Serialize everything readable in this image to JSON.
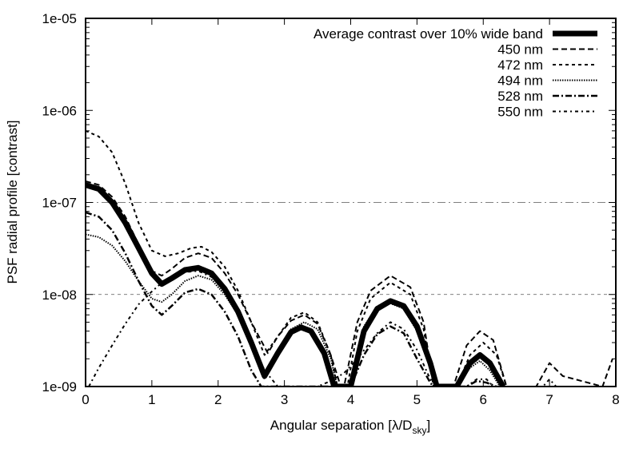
{
  "chart_data": {
    "type": "line",
    "title": "",
    "xlabel": "Angular separation [λ/D",
    "xlabel_sub": "sky",
    "xlabel_end": "]",
    "ylabel": "PSF radial profile [contrast]",
    "xlim": [
      0,
      8
    ],
    "ylim": [
      1e-09,
      1e-05
    ],
    "yscale": "log",
    "x_ticks": [
      "0",
      "1",
      "2",
      "3",
      "4",
      "5",
      "6",
      "7",
      "8"
    ],
    "y_ticks": [
      "1e-09",
      "1e-08",
      "1e-07",
      "1e-06",
      "1e-05"
    ],
    "hlines": [
      {
        "value": 1e-07,
        "style": "dash-dot"
      },
      {
        "value": 1e-08,
        "style": "dashed"
      }
    ],
    "legend_position": "top-right",
    "series": [
      {
        "name": "Average contrast over 10% wide band",
        "style": "thick",
        "x": [
          0,
          0.2,
          0.4,
          0.6,
          0.8,
          1.0,
          1.15,
          1.3,
          1.5,
          1.7,
          1.9,
          2.1,
          2.3,
          2.5,
          2.7,
          2.9,
          3.1,
          3.25,
          3.4,
          3.6,
          3.75,
          4.0,
          4.2,
          4.4,
          4.6,
          4.8,
          5.0,
          5.2,
          5.3,
          5.6,
          5.8,
          5.95,
          6.1,
          6.3
        ],
        "y": [
          1.55e-07,
          1.4e-07,
          1e-07,
          6e-08,
          3.2e-08,
          1.7e-08,
          1.3e-08,
          1.5e-08,
          1.85e-08,
          1.95e-08,
          1.7e-08,
          1.15e-08,
          6.5e-09,
          3e-09,
          1.3e-09,
          2.3e-09,
          3.9e-09,
          4.4e-09,
          4e-09,
          2.3e-09,
          1e-09,
          1e-09,
          4e-09,
          7e-09,
          8.5e-09,
          7.5e-09,
          4.5e-09,
          1.8e-09,
          1e-09,
          1e-09,
          1.8e-09,
          2.2e-09,
          1.8e-09,
          1e-09
        ]
      },
      {
        "name": "450 nm",
        "style": "dashed",
        "x": [
          0,
          0.2,
          0.4,
          0.6,
          0.8,
          1.0,
          1.15,
          1.3,
          1.5,
          1.7,
          1.9,
          2.1,
          2.3,
          2.5,
          2.75,
          2.9,
          3.1,
          3.3,
          3.5,
          3.7,
          3.85,
          3.9,
          4.1,
          4.3,
          4.6,
          4.9,
          5.1,
          5.25,
          5.55,
          5.75,
          5.95,
          6.15,
          6.35,
          6.8,
          7.0,
          7.2,
          7.8,
          7.95
        ],
        "y": [
          1.7e-07,
          1.55e-07,
          1.15e-07,
          7e-08,
          3.5e-08,
          1.8e-08,
          1.6e-08,
          1.9e-08,
          2.5e-08,
          2.8e-08,
          2.5e-08,
          1.7e-08,
          1e-08,
          5e-09,
          2.3e-09,
          3.5e-09,
          5.2e-09,
          6e-09,
          4.8e-09,
          2.2e-09,
          1e-09,
          1e-09,
          5e-09,
          1.1e-08,
          1.6e-08,
          1.2e-08,
          5e-09,
          1e-09,
          1e-09,
          2.8e-09,
          4e-09,
          3.2e-09,
          1e-09,
          1e-09,
          1.8e-09,
          1.3e-09,
          1e-09,
          2e-09
        ]
      },
      {
        "name": "472 nm",
        "style": "short-dashed",
        "x": [
          0,
          0.2,
          0.4,
          0.6,
          0.8,
          1.0,
          1.2,
          1.4,
          1.6,
          1.75,
          1.9,
          2.1,
          2.3,
          2.5,
          2.7,
          2.9,
          3.1,
          3.3,
          3.5,
          3.7,
          3.8,
          3.95,
          4.1,
          4.3,
          4.6,
          4.9,
          5.1,
          5.25,
          5.6,
          5.8,
          6.0,
          6.2,
          6.35
        ],
        "y": [
          6e-07,
          5.2e-07,
          3.5e-07,
          1.6e-07,
          6e-08,
          3e-08,
          2.6e-08,
          2.8e-08,
          3.2e-08,
          3.3e-08,
          2.9e-08,
          2e-08,
          1.1e-08,
          5e-09,
          2.2e-09,
          3.5e-09,
          5.6e-09,
          6.4e-09,
          5e-09,
          2.2e-09,
          1e-09,
          1e-09,
          4e-09,
          9e-09,
          1.35e-08,
          1e-08,
          4.2e-09,
          1e-09,
          1e-09,
          2.2e-09,
          3e-09,
          2.2e-09,
          1e-09
        ]
      },
      {
        "name": "494 nm",
        "style": "dotted",
        "x": [
          0,
          0.2,
          0.4,
          0.6,
          0.8,
          1.0,
          1.15,
          1.3,
          1.5,
          1.7,
          1.9,
          2.1,
          2.3,
          2.5,
          2.7,
          2.9,
          3.1,
          3.3,
          3.5,
          3.7,
          3.8,
          4.0,
          4.2,
          4.4,
          4.6,
          4.8,
          5.0,
          5.2,
          5.3,
          5.6,
          5.8,
          5.95,
          6.1,
          6.25
        ],
        "y": [
          4.5e-08,
          4.2e-08,
          3.4e-08,
          2.3e-08,
          1.4e-08,
          9e-09,
          8.3e-09,
          1e-08,
          1.4e-08,
          1.6e-08,
          1.45e-08,
          1e-08,
          6e-09,
          3e-09,
          1.2e-09,
          2.5e-09,
          4.2e-09,
          5e-09,
          4.2e-09,
          2e-09,
          1e-09,
          1e-09,
          4.5e-09,
          7.5e-09,
          8e-09,
          7e-09,
          4e-09,
          1.6e-09,
          1e-09,
          1e-09,
          1.6e-09,
          1.9e-09,
          1.5e-09,
          1e-09
        ]
      },
      {
        "name": "528 nm",
        "style": "dash-dot",
        "x": [
          0,
          0.2,
          0.4,
          0.6,
          0.8,
          1.0,
          1.15,
          1.3,
          1.5,
          1.7,
          1.9,
          2.1,
          2.3,
          2.5,
          2.65,
          2.8,
          3.0,
          3.2,
          3.35,
          3.5,
          3.6,
          4.0,
          4.2,
          4.4,
          4.6,
          4.8,
          5.0,
          5.2,
          5.25,
          5.75,
          5.9,
          6.05,
          6.2
        ],
        "y": [
          7.8e-08,
          7e-08,
          5e-08,
          2.8e-08,
          1.4e-08,
          7.5e-09,
          6e-09,
          7.5e-09,
          1.05e-08,
          1.15e-08,
          1e-08,
          6.5e-09,
          3.5e-09,
          1.5e-09,
          1e-09,
          1e-09,
          1e-09,
          1e-09,
          1e-09,
          1e-09,
          1e-09,
          1e-09,
          2.2e-09,
          3.7e-09,
          4.5e-09,
          3.8e-09,
          2e-09,
          1.1e-09,
          1e-09,
          1e-09,
          1.15e-09,
          1.1e-09,
          1e-09
        ]
      },
      {
        "name": "550 nm",
        "style": "loose-dash-dot",
        "x": [
          0.05,
          0.2,
          0.4,
          0.6,
          0.8,
          0.95,
          1.1,
          1.3,
          1.5,
          1.7,
          1.9,
          2.1,
          2.3,
          2.5,
          2.7,
          2.9,
          3.1,
          3.3,
          3.5,
          3.7,
          3.9,
          4.1,
          4.4,
          4.6,
          4.8,
          5.0,
          5.2,
          5.3,
          5.75,
          5.9,
          6.05,
          6.15,
          6.9,
          7.0,
          7.1
        ],
        "y": [
          1e-09,
          1.6e-09,
          2.8e-09,
          4.8e-09,
          7.8e-09,
          1e-08,
          1.25e-08,
          1.55e-08,
          1.75e-08,
          1.8e-08,
          1.55e-08,
          1.1e-08,
          6.5e-09,
          3.2e-09,
          1.5e-09,
          1e-09,
          1e-09,
          1e-09,
          1e-09,
          1.15e-09,
          1.4e-09,
          2e-09,
          3.8e-09,
          5e-09,
          4.2e-09,
          2.5e-09,
          1.2e-09,
          1e-09,
          1e-09,
          1.2e-09,
          1.2e-09,
          1e-09,
          1e-09,
          1.2e-09,
          1e-09
        ]
      }
    ]
  }
}
